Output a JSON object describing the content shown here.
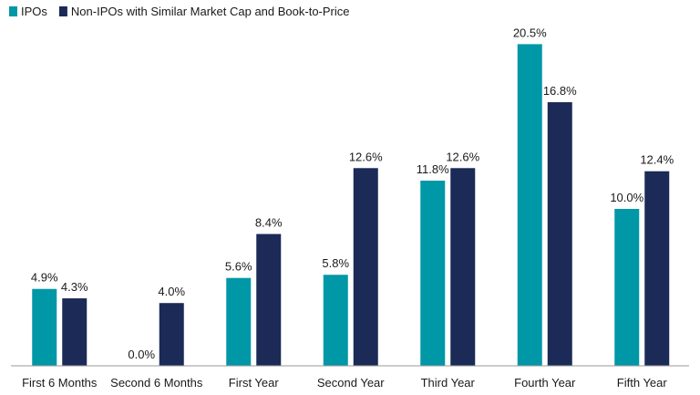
{
  "chart_data": {
    "type": "bar",
    "title": "",
    "xlabel": "",
    "ylabel": "",
    "ylim": [
      0,
      22
    ],
    "grid": false,
    "legend_position": "top-left",
    "value_suffix": "%",
    "categories": [
      "First 6 Months",
      "Second 6 Months",
      "First Year",
      "Second Year",
      "Third Year",
      "Fourth Year",
      "Fifth Year"
    ],
    "series": [
      {
        "name": "IPOs",
        "color": "#0097A7",
        "values": [
          4.9,
          0.0,
          5.6,
          5.8,
          11.8,
          20.5,
          10.0
        ]
      },
      {
        "name": "Non-IPOs with Similar Market Cap and Book-to-Price",
        "color": "#1B2A56",
        "values": [
          4.3,
          4.0,
          8.4,
          12.6,
          12.6,
          16.8,
          12.4
        ]
      }
    ]
  }
}
